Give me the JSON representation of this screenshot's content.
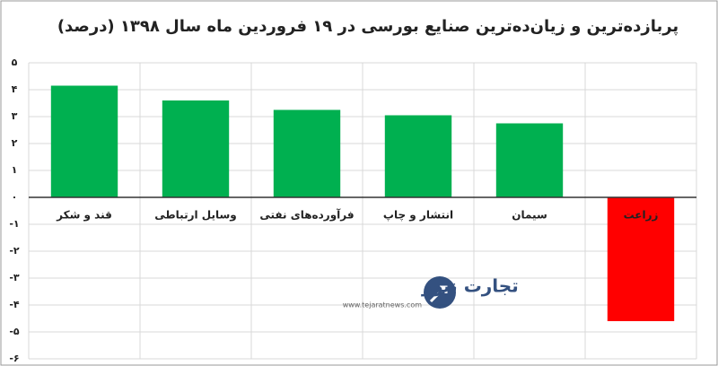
{
  "chart_data": {
    "type": "bar",
    "title": "پربازده‌ترین و زیان‌ده‌ترین صنایع بورسی در ۱۹ فروردین ماه سال ۱۳۹۸ (درصد)",
    "categories": [
      "قند و شکر",
      "وسایل ارتباطی",
      "فرآورده‌های نفتی",
      "انتشار و چاپ",
      "سیمان",
      "زراعت"
    ],
    "values": [
      4.15,
      3.6,
      3.25,
      3.05,
      2.75,
      -4.6
    ],
    "colors": [
      "#00b050",
      "#00b050",
      "#00b050",
      "#00b050",
      "#00b050",
      "#ff0000"
    ],
    "ylim": [
      -6,
      5
    ],
    "yticks": [
      {
        "value": 5,
        "label": "۵"
      },
      {
        "value": 4,
        "label": "۴"
      },
      {
        "value": 3,
        "label": "۳"
      },
      {
        "value": 2,
        "label": "۲"
      },
      {
        "value": 1,
        "label": "۱"
      },
      {
        "value": 0,
        "label": "۰"
      },
      {
        "value": -1,
        "label": "-۱"
      },
      {
        "value": -2,
        "label": "-۲"
      },
      {
        "value": -3,
        "label": "-۳"
      },
      {
        "value": -4,
        "label": "-۴"
      },
      {
        "value": -5,
        "label": "-۵"
      },
      {
        "value": -6,
        "label": "-۶"
      }
    ],
    "grid": true,
    "watermark": {
      "name": "تجارت نیوز",
      "url": "www.tejaratnews.com"
    }
  }
}
